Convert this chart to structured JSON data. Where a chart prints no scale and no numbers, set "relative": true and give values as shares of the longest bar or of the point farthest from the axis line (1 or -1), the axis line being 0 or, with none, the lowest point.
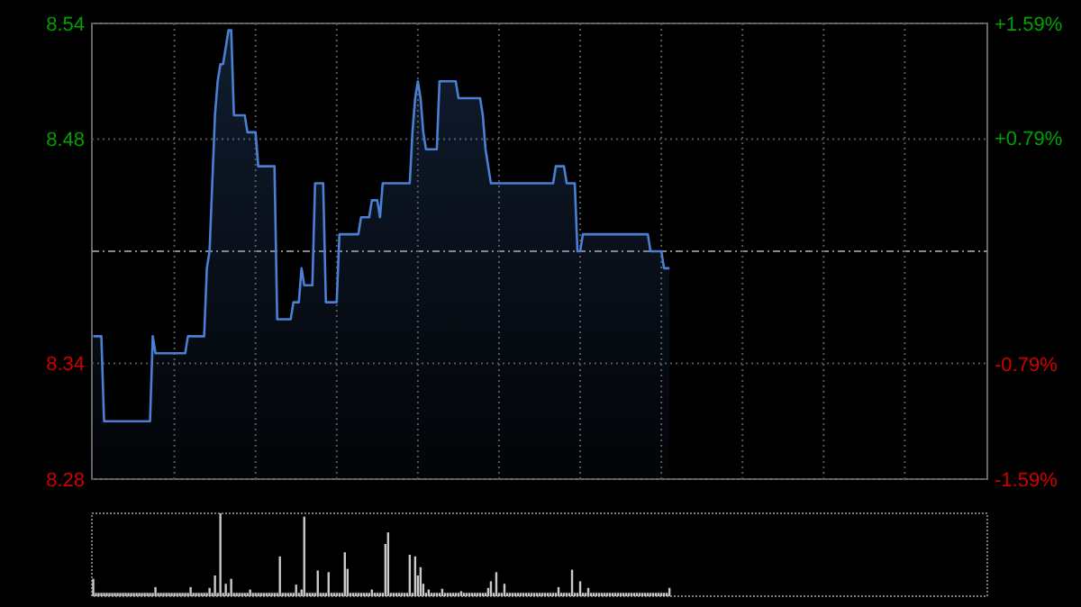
{
  "chart_data": [
    {
      "type": "area",
      "categories": [
        null,
        null,
        null,
        null,
        null,
        null,
        null,
        null,
        null,
        null,
        null,
        null,
        null,
        null,
        null,
        null,
        null,
        null,
        null,
        null,
        null,
        null,
        null,
        null,
        null,
        null,
        null,
        null,
        null,
        null,
        null,
        null,
        null,
        null,
        null,
        null,
        null,
        null,
        null,
        null,
        null,
        null,
        null,
        null,
        null,
        null,
        null,
        null,
        null,
        null,
        null,
        null,
        null,
        null,
        null,
        null,
        null,
        null,
        null,
        null,
        null,
        null,
        null,
        null,
        null,
        null,
        null,
        null,
        null,
        null,
        null,
        null,
        null,
        null,
        null,
        null,
        null,
        null,
        null,
        null,
        null,
        null,
        null,
        null,
        null,
        null,
        null,
        null,
        null,
        null,
        null,
        null,
        null,
        null,
        null,
        null,
        null,
        null,
        null,
        null,
        null,
        null,
        null,
        null,
        null,
        null,
        null,
        null,
        null,
        null,
        null,
        null,
        null,
        null,
        null,
        null,
        null,
        null,
        null,
        null,
        null,
        null,
        null,
        null,
        null,
        null,
        null,
        null,
        null,
        null,
        null,
        null,
        null,
        null,
        null,
        null,
        null,
        null,
        null,
        null,
        null,
        null,
        null,
        null,
        null,
        null,
        null,
        null,
        null,
        null,
        null,
        null,
        null,
        null,
        null,
        null,
        null,
        null,
        null,
        null,
        null,
        null,
        null,
        null,
        null,
        null,
        null,
        null,
        null,
        null,
        null,
        null,
        null,
        null,
        null,
        null,
        null,
        null,
        null,
        null,
        null,
        null,
        null,
        null,
        null,
        null,
        null,
        null,
        null,
        null,
        null,
        null,
        null,
        null,
        null,
        null,
        null,
        null,
        null,
        null,
        null,
        null,
        null,
        null,
        null,
        null,
        null,
        null,
        null,
        null,
        null,
        null,
        null,
        null
      ],
      "series": [
        {
          "color": "#4a80d4",
          "values": [
            8.36,
            8.36,
            8.36,
            8.36,
            8.31,
            8.31,
            8.31,
            8.31,
            8.31,
            8.31,
            8.31,
            8.31,
            8.31,
            8.31,
            8.31,
            8.31,
            8.31,
            8.31,
            8.31,
            8.31,
            8.31,
            8.31,
            8.36,
            8.35,
            8.35,
            8.35,
            8.35,
            8.35,
            8.35,
            8.35,
            8.35,
            8.35,
            8.35,
            8.35,
            8.35,
            8.36,
            8.36,
            8.36,
            8.36,
            8.36,
            8.36,
            8.36,
            8.4,
            8.41,
            8.45,
            8.49,
            8.51,
            8.52,
            8.52,
            8.53,
            8.54,
            8.54,
            8.49,
            8.49,
            8.49,
            8.49,
            8.49,
            8.48,
            8.48,
            8.48,
            8.48,
            8.46,
            8.46,
            8.46,
            8.46,
            8.46,
            8.46,
            8.46,
            8.37,
            8.37,
            8.37,
            8.37,
            8.37,
            8.37,
            8.38,
            8.38,
            8.38,
            8.4,
            8.39,
            8.39,
            8.39,
            8.39,
            8.45,
            8.45,
            8.45,
            8.45,
            8.38,
            8.38,
            8.38,
            8.38,
            8.38,
            8.42,
            8.42,
            8.42,
            8.42,
            8.42,
            8.42,
            8.42,
            8.42,
            8.43,
            8.43,
            8.43,
            8.43,
            8.44,
            8.44,
            8.44,
            8.43,
            8.45,
            8.45,
            8.45,
            8.45,
            8.45,
            8.45,
            8.45,
            8.45,
            8.45,
            8.45,
            8.45,
            8.48,
            8.5,
            8.51,
            8.5,
            8.48,
            8.47,
            8.47,
            8.47,
            8.47,
            8.47,
            8.51,
            8.51,
            8.51,
            8.51,
            8.51,
            8.51,
            8.51,
            8.5,
            8.5,
            8.5,
            8.5,
            8.5,
            8.5,
            8.5,
            8.5,
            8.5,
            8.49,
            8.47,
            8.46,
            8.45,
            8.45,
            8.45,
            8.45,
            8.45,
            8.45,
            8.45,
            8.45,
            8.45,
            8.45,
            8.45,
            8.45,
            8.45,
            8.45,
            8.45,
            8.45,
            8.45,
            8.45,
            8.45,
            8.45,
            8.45,
            8.45,
            8.45,
            8.45,
            8.46,
            8.46,
            8.46,
            8.46,
            8.45,
            8.45,
            8.45,
            8.45,
            8.41,
            8.41,
            8.42,
            8.42,
            8.42,
            8.42,
            8.42,
            8.42,
            8.42,
            8.42,
            8.42,
            8.42,
            8.42,
            8.42,
            8.42,
            8.42,
            8.42,
            8.42,
            8.42,
            8.42,
            8.42,
            8.42,
            8.42,
            8.42,
            8.42,
            8.42,
            8.42,
            8.41,
            8.41,
            8.41,
            8.41,
            8.41,
            8.4,
            8.4,
            8.4
          ]
        }
      ],
      "ylim": [
        8.276,
        8.544
      ],
      "yticks": [
        {
          "value": 8.276,
          "label": "8.28"
        },
        {
          "value": 8.344,
          "label": "8.34"
        },
        {
          "value": 8.476,
          "label": "8.48"
        },
        {
          "value": 8.544,
          "label": "8.54"
        }
      ],
      "y2lim": [
        -1.59,
        1.59
      ],
      "y2ticks": [
        {
          "value": -1.59,
          "label": "-1.59%"
        },
        {
          "value": -0.79,
          "label": "-0.79%"
        },
        {
          "value": 0.79,
          "label": "+0.79%"
        },
        {
          "value": 1.59,
          "label": "+1.59%"
        }
      ],
      "ref_lines": [
        {
          "axis": "y",
          "value": 8.41,
          "color": "#888888",
          "line_style": "dashed"
        }
      ],
      "grid": true
    },
    {
      "type": "bar",
      "relative": true,
      "color": "#c8c8c8",
      "categories": [
        null,
        null,
        null,
        null,
        null,
        null,
        null,
        null,
        null,
        null,
        null,
        null,
        null,
        null,
        null,
        null,
        null,
        null,
        null,
        null,
        null,
        null,
        null,
        null,
        null,
        null,
        null,
        null,
        null,
        null,
        null,
        null,
        null,
        null,
        null,
        null,
        null,
        null,
        null,
        null,
        null,
        null,
        null,
        null,
        null,
        null,
        null,
        null,
        null,
        null,
        null,
        null,
        null,
        null,
        null,
        null,
        null,
        null,
        null,
        null,
        null,
        null,
        null,
        null,
        null,
        null,
        null,
        null,
        null,
        null,
        null,
        null,
        null,
        null,
        null,
        null,
        null,
        null,
        null,
        null,
        null,
        null,
        null,
        null,
        null,
        null,
        null,
        null,
        null,
        null,
        null,
        null,
        null,
        null,
        null,
        null,
        null,
        null,
        null,
        null,
        null,
        null,
        null,
        null,
        null,
        null,
        null,
        null,
        null,
        null,
        null,
        null,
        null,
        null,
        null,
        null,
        null,
        null,
        null,
        null,
        null,
        null,
        null,
        null,
        null,
        null,
        null,
        null,
        null,
        null,
        null,
        null,
        null,
        null,
        null,
        null,
        null,
        null,
        null,
        null,
        null,
        null,
        null,
        null,
        null,
        null,
        null,
        null,
        null,
        null,
        null,
        null,
        null,
        null,
        null,
        null,
        null,
        null,
        null,
        null,
        null,
        null,
        null,
        null,
        null,
        null,
        null,
        null,
        null,
        null,
        null,
        null,
        null,
        null,
        null,
        null,
        null,
        null,
        null,
        null,
        null,
        null,
        null,
        null,
        null,
        null,
        null,
        null,
        null,
        null,
        null,
        null,
        null,
        null,
        null,
        null,
        null,
        null,
        null,
        null,
        null,
        null,
        null,
        null,
        null,
        null,
        null,
        null,
        null,
        null,
        null,
        null,
        null,
        null
      ],
      "values": [
        0.21,
        0.04,
        0.04,
        0.04,
        0.04,
        0.04,
        0.04,
        0.04,
        0.04,
        0.04,
        0.04,
        0.04,
        0.04,
        0.04,
        0.04,
        0.04,
        0.04,
        0.04,
        0.04,
        0.04,
        0.04,
        0.04,
        0.04,
        0.11,
        0.04,
        0.04,
        0.04,
        0.04,
        0.04,
        0.04,
        0.04,
        0.04,
        0.04,
        0.04,
        0.04,
        0.04,
        0.11,
        0.04,
        0.04,
        0.04,
        0.04,
        0.04,
        0.04,
        0.1,
        0.04,
        0.25,
        0.04,
        1,
        0.04,
        0.15,
        0.04,
        0.21,
        0.04,
        0.04,
        0.04,
        0.04,
        0.04,
        0.04,
        0.08,
        0.04,
        0.04,
        0.04,
        0.04,
        0.04,
        0.04,
        0.04,
        0.04,
        0.04,
        0.04,
        0.48,
        0.04,
        0.04,
        0.04,
        0.04,
        0.04,
        0.14,
        0.04,
        0.08,
        0.96,
        0.04,
        0.04,
        0.04,
        0.04,
        0.31,
        0.04,
        0.04,
        0.04,
        0.29,
        0.04,
        0.04,
        0.04,
        0.04,
        0.04,
        0.53,
        0.33,
        0.04,
        0.04,
        0.04,
        0.04,
        0.04,
        0.04,
        0.04,
        0.04,
        0.08,
        0.04,
        0.04,
        0.04,
        0.04,
        0.63,
        0.77,
        0.04,
        0.04,
        0.04,
        0.04,
        0.04,
        0.04,
        0.04,
        0.5,
        0.04,
        0.48,
        0.25,
        0.35,
        0.15,
        0.04,
        0.08,
        0.04,
        0.04,
        0.04,
        0.04,
        0.09,
        0.04,
        0.04,
        0.04,
        0.04,
        0.04,
        0.04,
        0.06,
        0.04,
        0.04,
        0.04,
        0.04,
        0.04,
        0.04,
        0.04,
        0.04,
        0.04,
        0.1,
        0.18,
        0.04,
        0.29,
        0.04,
        0.04,
        0.15,
        0.04,
        0.04,
        0.04,
        0.04,
        0.04,
        0.04,
        0.04,
        0.04,
        0.04,
        0.04,
        0.04,
        0.04,
        0.04,
        0.04,
        0.04,
        0.04,
        0.04,
        0.04,
        0.04,
        0.11,
        0.04,
        0.04,
        0.04,
        0.04,
        0.32,
        0.04,
        0.04,
        0.18,
        0.04,
        0.04,
        0.1,
        0.04,
        0.04,
        0.04,
        0.04,
        0.04,
        0.04,
        0.04,
        0.04,
        0.04,
        0.04,
        0.04,
        0.04,
        0.04,
        0.04,
        0.04,
        0.04,
        0.04,
        0.04,
        0.04,
        0.04,
        0.04,
        0.04,
        0.04,
        0.04,
        0.04,
        0.04,
        0.04,
        0.04,
        0.04,
        0.1
      ]
    }
  ]
}
